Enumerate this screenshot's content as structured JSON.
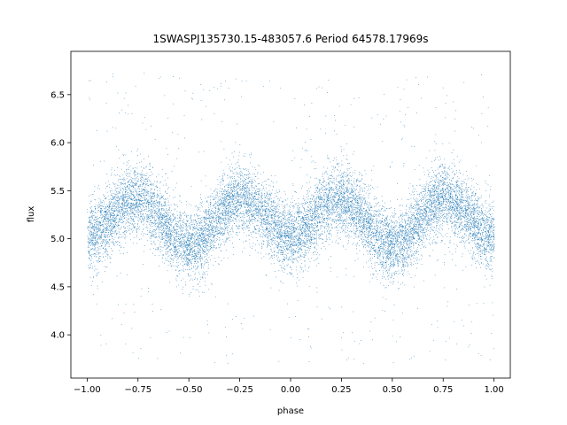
{
  "chart_data": {
    "type": "scatter",
    "title": "1SWASPJ135730.15-483057.6 Period 64578.17969s",
    "xlabel": "phase",
    "ylabel": "flux",
    "xlim": [
      -1.08,
      1.08
    ],
    "ylim": [
      3.55,
      6.95
    ],
    "xticks": [
      -1.0,
      -0.75,
      -0.5,
      -0.25,
      0.0,
      0.25,
      0.5,
      0.75,
      1.0
    ],
    "xtick_labels": [
      "−1.00",
      "−0.75",
      "−0.50",
      "−0.25",
      "0.00",
      "0.25",
      "0.50",
      "0.75",
      "1.00"
    ],
    "yticks": [
      4.0,
      4.5,
      5.0,
      5.5,
      6.0,
      6.5
    ],
    "ytick_labels": [
      "4.0",
      "4.5",
      "5.0",
      "5.5",
      "6.0",
      "6.5"
    ],
    "grid": false,
    "point_color": "#1f77b4",
    "model": {
      "x_range": [
        -1.0,
        1.0
      ],
      "baseline": 5.2,
      "primary_amplitude": 0.22,
      "primary_cycles_per_unit_phase": 2,
      "secondary_amplitude": 0.05,
      "scatter_sigma": 0.18,
      "outlier_range": [
        3.7,
        6.75
      ],
      "n_points": 14000
    }
  }
}
